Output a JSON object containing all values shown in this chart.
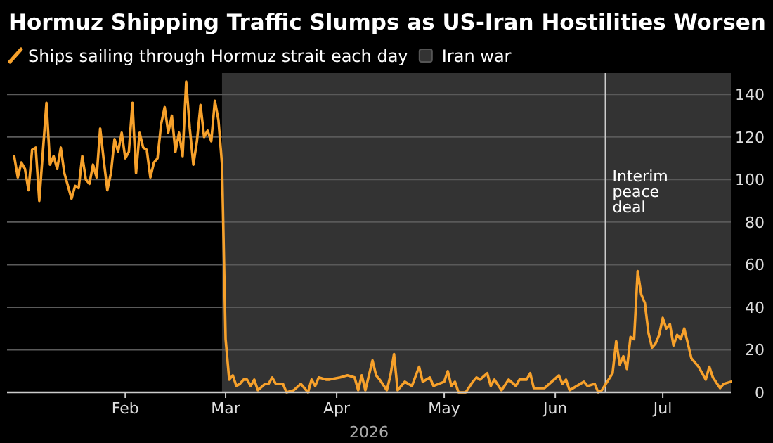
{
  "chart_data": {
    "type": "line",
    "title": "Hormuz Shipping Traffic Slumps as US-Iran Hostilities Worsen",
    "xlabel": "2026",
    "x": [
      "2026-01-01",
      "2026-01-02",
      "2026-01-03",
      "2026-01-04",
      "2026-01-05",
      "2026-01-06",
      "2026-01-07",
      "2026-01-08",
      "2026-01-10",
      "2026-01-11",
      "2026-01-12",
      "2026-01-13",
      "2026-01-14",
      "2026-01-15",
      "2026-01-17",
      "2026-01-18",
      "2026-01-19",
      "2026-01-20",
      "2026-01-21",
      "2026-01-22",
      "2026-01-23",
      "2026-01-24",
      "2026-01-25",
      "2026-01-26",
      "2026-01-27",
      "2026-01-28",
      "2026-01-29",
      "2026-01-30",
      "2026-01-31",
      "2026-02-01",
      "2026-02-02",
      "2026-02-03",
      "2026-02-04",
      "2026-02-05",
      "2026-02-06",
      "2026-02-07",
      "2026-02-08",
      "2026-02-09",
      "2026-02-10",
      "2026-02-11",
      "2026-02-12",
      "2026-02-13",
      "2026-02-14",
      "2026-02-15",
      "2026-02-16",
      "2026-02-17",
      "2026-02-18",
      "2026-02-19",
      "2026-02-20",
      "2026-02-21",
      "2026-02-22",
      "2026-02-23",
      "2026-02-24",
      "2026-02-25",
      "2026-02-26",
      "2026-02-27",
      "2026-02-28",
      "2026-03-01",
      "2026-03-02",
      "2026-03-03",
      "2026-03-04",
      "2026-03-05",
      "2026-03-06",
      "2026-03-07",
      "2026-03-08",
      "2026-03-09",
      "2026-03-10",
      "2026-03-12",
      "2026-03-13",
      "2026-03-14",
      "2026-03-15",
      "2026-03-17",
      "2026-03-18",
      "2026-03-20",
      "2026-03-22",
      "2026-03-24",
      "2026-03-25",
      "2026-03-26",
      "2026-03-27",
      "2026-03-29",
      "2026-03-30",
      "2026-04-02",
      "2026-04-04",
      "2026-04-06",
      "2026-04-07",
      "2026-04-08",
      "2026-04-09",
      "2026-04-11",
      "2026-04-12",
      "2026-04-13",
      "2026-04-15",
      "2026-04-16",
      "2026-04-17",
      "2026-04-18",
      "2026-04-20",
      "2026-04-21",
      "2026-04-22",
      "2026-04-24",
      "2026-04-25",
      "2026-04-27",
      "2026-04-28",
      "2026-05-01",
      "2026-05-02",
      "2026-05-03",
      "2026-05-04",
      "2026-05-05",
      "2026-05-07",
      "2026-05-09",
      "2026-05-10",
      "2026-05-11",
      "2026-05-13",
      "2026-05-14",
      "2026-05-15",
      "2026-05-17",
      "2026-05-19",
      "2026-05-21",
      "2026-05-22",
      "2026-05-24",
      "2026-05-25",
      "2026-05-26",
      "2026-05-29",
      "2026-06-02",
      "2026-06-03",
      "2026-06-04",
      "2026-06-05",
      "2026-06-07",
      "2026-06-09",
      "2026-06-10",
      "2026-06-12",
      "2026-06-13",
      "2026-06-14",
      "2026-06-17",
      "2026-06-18",
      "2026-06-19",
      "2026-06-20",
      "2026-06-21",
      "2026-06-22",
      "2026-06-23",
      "2026-06-24",
      "2026-06-25",
      "2026-06-26",
      "2026-06-27",
      "2026-06-28",
      "2026-06-29",
      "2026-06-30",
      "2026-07-01",
      "2026-07-02",
      "2026-07-03",
      "2026-07-04",
      "2026-07-05",
      "2026-07-06",
      "2026-07-07",
      "2026-07-08",
      "2026-07-09",
      "2026-07-11",
      "2026-07-13",
      "2026-07-14",
      "2026-07-15",
      "2026-07-17",
      "2026-07-18",
      "2026-07-20"
    ],
    "series": [
      {
        "name": "Ships sailing through Hormuz strait each day",
        "color": "#f7a12b",
        "values": [
          111,
          101,
          108,
          105,
          95,
          114,
          115,
          90,
          136,
          107,
          111,
          105,
          115,
          103,
          91,
          97,
          96,
          111,
          100,
          98,
          107,
          101,
          124,
          109,
          95,
          103,
          119,
          113,
          122,
          110,
          113,
          136,
          103,
          122,
          115,
          114,
          101,
          108,
          110,
          126,
          134,
          122,
          130,
          113,
          122,
          111,
          146,
          124,
          107,
          118,
          135,
          120,
          123,
          118,
          137,
          128,
          107,
          25,
          6,
          8,
          3,
          4,
          6,
          6,
          3,
          6,
          1,
          4,
          4,
          7,
          4,
          4,
          0,
          1,
          4,
          0,
          6,
          3,
          7,
          6,
          6,
          7,
          8,
          7,
          1,
          8,
          1,
          15,
          8,
          6,
          1,
          8,
          18,
          1,
          5,
          4,
          3,
          12,
          5,
          7,
          3,
          5,
          10,
          3,
          5,
          0,
          0,
          5,
          7,
          6,
          9,
          3,
          6,
          1,
          6,
          3,
          6,
          6,
          9,
          2,
          2,
          8,
          4,
          6,
          1,
          3,
          5,
          3,
          4,
          0,
          1,
          9,
          24,
          13,
          17,
          11,
          26,
          25,
          57,
          46,
          42,
          28,
          21,
          23,
          27,
          35,
          30,
          32,
          22,
          27,
          25,
          30,
          23,
          16,
          12,
          6,
          12,
          7,
          2,
          4,
          5
        ]
      }
    ],
    "xlim": [
      "2025-12-30",
      "2026-07-20"
    ],
    "xticks": [
      {
        "value": "2026-02-01",
        "label": "Feb"
      },
      {
        "value": "2026-03-01",
        "label": "Mar"
      },
      {
        "value": "2026-04-01",
        "label": "Apr"
      },
      {
        "value": "2026-05-01",
        "label": "May"
      },
      {
        "value": "2026-06-01",
        "label": "Jun"
      },
      {
        "value": "2026-07-01",
        "label": "Jul"
      }
    ],
    "ylim": [
      0,
      150
    ],
    "yticks": [
      0,
      20,
      40,
      60,
      80,
      100,
      120,
      140
    ],
    "grid": "y",
    "legend": "top left",
    "bands": [
      {
        "axis": "x",
        "from": "2026-02-28",
        "to": "2026-07-20",
        "label": "Iran war",
        "color": "#333333"
      }
    ],
    "ref_lines": [
      {
        "axis": "x",
        "value": "2026-06-15",
        "label": "Interim peace deal",
        "color": "#cccccc"
      }
    ]
  }
}
